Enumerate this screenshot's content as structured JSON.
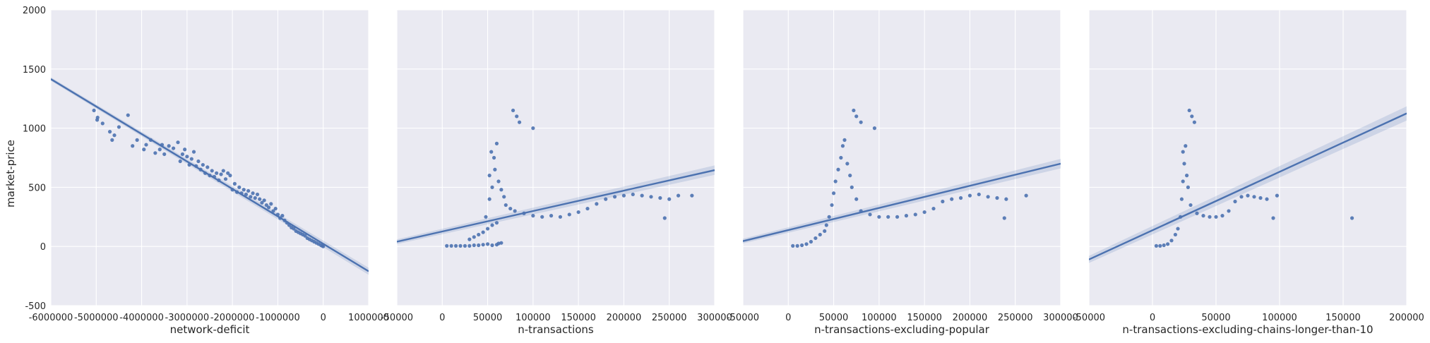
{
  "colors": {
    "panel_bg": "#EAEAF2",
    "grid": "#FFFFFF",
    "points": "#4C72B0",
    "fit_line": "#4C72B0",
    "ci_band": "#4C72B0"
  },
  "y_axis_label": "market-price",
  "chart_data": [
    {
      "type": "scatter",
      "xlabel": "network-deficit",
      "ylabel": "market-price",
      "xlim": [
        -6000000,
        1000000
      ],
      "ylim": [
        -500,
        2000
      ],
      "xticks": [
        -6000000,
        -5000000,
        -4000000,
        -3000000,
        -2000000,
        -1000000,
        0,
        1000000
      ],
      "yticks": [
        -500,
        0,
        500,
        1000,
        1500,
        2000
      ],
      "grid": true,
      "regression": {
        "x": [
          -6000000,
          1000000
        ],
        "y": [
          1415,
          -210
        ],
        "ci_halfwidth": 15
      },
      "points": [
        [
          -5050000,
          1150
        ],
        [
          -4980000,
          1070
        ],
        [
          -4970000,
          1090
        ],
        [
          -4860000,
          1040
        ],
        [
          -4700000,
          970
        ],
        [
          -4650000,
          900
        ],
        [
          -4600000,
          940
        ],
        [
          -4500000,
          1010
        ],
        [
          -4300000,
          1110
        ],
        [
          -4200000,
          850
        ],
        [
          -4100000,
          900
        ],
        [
          -3950000,
          820
        ],
        [
          -3900000,
          860
        ],
        [
          -3800000,
          900
        ],
        [
          -3700000,
          790
        ],
        [
          -3600000,
          820
        ],
        [
          -3550000,
          860
        ],
        [
          -3500000,
          780
        ],
        [
          -3400000,
          850
        ],
        [
          -3300000,
          830
        ],
        [
          -3200000,
          880
        ],
        [
          -3150000,
          720
        ],
        [
          -3100000,
          780
        ],
        [
          -3050000,
          820
        ],
        [
          -3000000,
          760
        ],
        [
          -2950000,
          690
        ],
        [
          -2900000,
          740
        ],
        [
          -2850000,
          800
        ],
        [
          -2800000,
          680
        ],
        [
          -2750000,
          720
        ],
        [
          -2700000,
          650
        ],
        [
          -2650000,
          690
        ],
        [
          -2600000,
          620
        ],
        [
          -2550000,
          670
        ],
        [
          -2500000,
          600
        ],
        [
          -2450000,
          640
        ],
        [
          -2400000,
          590
        ],
        [
          -2350000,
          620
        ],
        [
          -2300000,
          560
        ],
        [
          -2250000,
          610
        ],
        [
          -2200000,
          640
        ],
        [
          -2150000,
          570
        ],
        [
          -2100000,
          620
        ],
        [
          -2050000,
          600
        ],
        [
          -2000000,
          480
        ],
        [
          -1950000,
          530
        ],
        [
          -1900000,
          460
        ],
        [
          -1850000,
          500
        ],
        [
          -1800000,
          450
        ],
        [
          -1750000,
          480
        ],
        [
          -1700000,
          440
        ],
        [
          -1650000,
          470
        ],
        [
          -1600000,
          420
        ],
        [
          -1550000,
          450
        ],
        [
          -1500000,
          410
        ],
        [
          -1450000,
          440
        ],
        [
          -1400000,
          400
        ],
        [
          -1350000,
          370
        ],
        [
          -1300000,
          390
        ],
        [
          -1250000,
          350
        ],
        [
          -1200000,
          330
        ],
        [
          -1150000,
          360
        ],
        [
          -1100000,
          300
        ],
        [
          -1050000,
          320
        ],
        [
          -1000000,
          270
        ],
        [
          -950000,
          240
        ],
        [
          -900000,
          260
        ],
        [
          -850000,
          220
        ],
        [
          -800000,
          200
        ],
        [
          -750000,
          180
        ],
        [
          -700000,
          160
        ],
        [
          -650000,
          150
        ],
        [
          -600000,
          130
        ],
        [
          -550000,
          120
        ],
        [
          -500000,
          110
        ],
        [
          -450000,
          100
        ],
        [
          -400000,
          90
        ],
        [
          -350000,
          70
        ],
        [
          -300000,
          60
        ],
        [
          -250000,
          50
        ],
        [
          -200000,
          40
        ],
        [
          -150000,
          30
        ],
        [
          -100000,
          20
        ],
        [
          -50000,
          10
        ],
        [
          -20000,
          5
        ],
        [
          0,
          0
        ]
      ]
    },
    {
      "type": "scatter",
      "xlabel": "n-transactions",
      "xlim": [
        -50000,
        300000
      ],
      "ylim": [
        -500,
        2000
      ],
      "xticks": [
        -50000,
        0,
        50000,
        100000,
        150000,
        200000,
        250000,
        300000
      ],
      "grid": true,
      "regression": {
        "x": [
          -50000,
          300000
        ],
        "y": [
          40,
          645
        ],
        "ci_halfwidth": 20
      },
      "points": [
        [
          5000,
          5
        ],
        [
          10000,
          5
        ],
        [
          15000,
          5
        ],
        [
          20000,
          5
        ],
        [
          25000,
          5
        ],
        [
          30000,
          5
        ],
        [
          35000,
          10
        ],
        [
          40000,
          10
        ],
        [
          45000,
          15
        ],
        [
          50000,
          20
        ],
        [
          55000,
          10
        ],
        [
          60000,
          15
        ],
        [
          62000,
          25
        ],
        [
          65000,
          30
        ],
        [
          30000,
          60
        ],
        [
          35000,
          80
        ],
        [
          40000,
          100
        ],
        [
          45000,
          120
        ],
        [
          50000,
          150
        ],
        [
          55000,
          180
        ],
        [
          60000,
          200
        ],
        [
          48000,
          250
        ],
        [
          52000,
          400
        ],
        [
          55000,
          500
        ],
        [
          52000,
          600
        ],
        [
          58000,
          650
        ],
        [
          54000,
          800
        ],
        [
          60000,
          870
        ],
        [
          57000,
          750
        ],
        [
          62000,
          550
        ],
        [
          65000,
          480
        ],
        [
          68000,
          420
        ],
        [
          70000,
          350
        ],
        [
          75000,
          320
        ],
        [
          78000,
          1150
        ],
        [
          82000,
          1100
        ],
        [
          85000,
          1050
        ],
        [
          100000,
          1000
        ],
        [
          80000,
          300
        ],
        [
          90000,
          280
        ],
        [
          100000,
          260
        ],
        [
          110000,
          250
        ],
        [
          120000,
          260
        ],
        [
          130000,
          250
        ],
        [
          140000,
          270
        ],
        [
          150000,
          290
        ],
        [
          160000,
          320
        ],
        [
          170000,
          360
        ],
        [
          180000,
          400
        ],
        [
          190000,
          420
        ],
        [
          200000,
          430
        ],
        [
          210000,
          440
        ],
        [
          220000,
          430
        ],
        [
          230000,
          420
        ],
        [
          240000,
          410
        ],
        [
          250000,
          400
        ],
        [
          260000,
          430
        ],
        [
          275000,
          430
        ],
        [
          245000,
          240
        ]
      ]
    },
    {
      "type": "scatter",
      "xlabel": "n-transactions-excluding-popular",
      "xlim": [
        -50000,
        300000
      ],
      "ylim": [
        -500,
        2000
      ],
      "xticks": [
        -50000,
        0,
        50000,
        100000,
        150000,
        200000,
        250000,
        300000
      ],
      "grid": true,
      "regression": {
        "x": [
          -50000,
          300000
        ],
        "y": [
          45,
          700
        ],
        "ci_halfwidth": 20
      },
      "points": [
        [
          5000,
          5
        ],
        [
          10000,
          5
        ],
        [
          15000,
          10
        ],
        [
          20000,
          20
        ],
        [
          25000,
          40
        ],
        [
          30000,
          70
        ],
        [
          35000,
          100
        ],
        [
          40000,
          130
        ],
        [
          42000,
          180
        ],
        [
          45000,
          250
        ],
        [
          48000,
          350
        ],
        [
          50000,
          450
        ],
        [
          52000,
          550
        ],
        [
          55000,
          650
        ],
        [
          58000,
          750
        ],
        [
          60000,
          850
        ],
        [
          62000,
          900
        ],
        [
          65000,
          700
        ],
        [
          68000,
          600
        ],
        [
          70000,
          500
        ],
        [
          72000,
          1150
        ],
        [
          75000,
          1100
        ],
        [
          80000,
          1050
        ],
        [
          95000,
          1000
        ],
        [
          75000,
          400
        ],
        [
          80000,
          300
        ],
        [
          90000,
          270
        ],
        [
          100000,
          250
        ],
        [
          110000,
          250
        ],
        [
          120000,
          250
        ],
        [
          130000,
          260
        ],
        [
          140000,
          270
        ],
        [
          150000,
          290
        ],
        [
          160000,
          320
        ],
        [
          170000,
          380
        ],
        [
          180000,
          400
        ],
        [
          190000,
          410
        ],
        [
          200000,
          430
        ],
        [
          210000,
          440
        ],
        [
          220000,
          420
        ],
        [
          230000,
          410
        ],
        [
          240000,
          400
        ],
        [
          262000,
          430
        ],
        [
          238000,
          240
        ]
      ]
    },
    {
      "type": "scatter",
      "xlabel": "n-transactions-excluding-chains-longer-than-10",
      "xlim": [
        -50000,
        200000
      ],
      "ylim": [
        -500,
        2000
      ],
      "xticks": [
        -50000,
        0,
        50000,
        100000,
        150000,
        200000
      ],
      "grid": true,
      "regression": {
        "x": [
          -50000,
          200000
        ],
        "y": [
          -110,
          1125
        ],
        "ci_halfwidth": 30
      },
      "points": [
        [
          3000,
          5
        ],
        [
          6000,
          5
        ],
        [
          9000,
          10
        ],
        [
          12000,
          20
        ],
        [
          15000,
          50
        ],
        [
          18000,
          100
        ],
        [
          20000,
          150
        ],
        [
          22000,
          250
        ],
        [
          23000,
          400
        ],
        [
          24000,
          550
        ],
        [
          25000,
          700
        ],
        [
          26000,
          850
        ],
        [
          24000,
          800
        ],
        [
          27000,
          600
        ],
        [
          28000,
          500
        ],
        [
          29000,
          1150
        ],
        [
          31000,
          1100
        ],
        [
          33000,
          1050
        ],
        [
          30000,
          350
        ],
        [
          35000,
          280
        ],
        [
          40000,
          260
        ],
        [
          45000,
          250
        ],
        [
          50000,
          250
        ],
        [
          55000,
          260
        ],
        [
          60000,
          300
        ],
        [
          65000,
          380
        ],
        [
          70000,
          420
        ],
        [
          75000,
          430
        ],
        [
          80000,
          420
        ],
        [
          85000,
          410
        ],
        [
          90000,
          400
        ],
        [
          98000,
          430
        ],
        [
          95000,
          240
        ],
        [
          157000,
          240
        ]
      ]
    }
  ]
}
